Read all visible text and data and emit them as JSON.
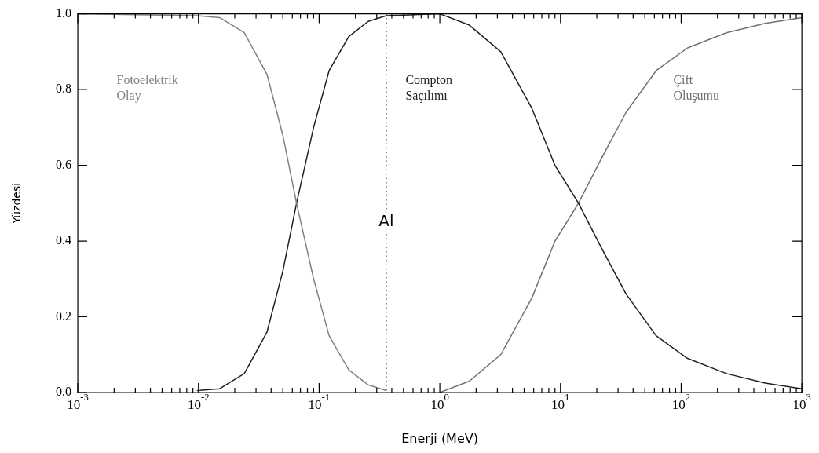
{
  "chart_data": {
    "type": "line",
    "xlabel": "Enerji (MeV)",
    "ylabel": "Yüzdesi",
    "log": "x",
    "grid": false,
    "legend": false,
    "marker": "none",
    "line_style": "solid",
    "xlim": [
      0.001,
      1000
    ],
    "ylim": [
      0,
      1
    ],
    "xticks": [
      {
        "value": 0.001,
        "label": "10$^{-3}$"
      },
      {
        "value": 0.002,
        "label": null
      },
      {
        "value": 0.003,
        "label": null
      },
      {
        "value": 0.004,
        "label": null
      },
      {
        "value": 0.005,
        "label": null
      },
      {
        "value": 0.006,
        "label": null
      },
      {
        "value": 0.007,
        "label": null
      },
      {
        "value": 0.008,
        "label": null
      },
      {
        "value": 0.009,
        "label": null
      },
      {
        "value": 0.01,
        "label": "10$^{-2}$"
      },
      {
        "value": 0.02,
        "label": null
      },
      {
        "value": 0.03,
        "label": null
      },
      {
        "value": 0.04,
        "label": null
      },
      {
        "value": 0.05,
        "label": null
      },
      {
        "value": 0.06,
        "label": null
      },
      {
        "value": 0.07,
        "label": null
      },
      {
        "value": 0.08,
        "label": null
      },
      {
        "value": 0.09,
        "label": null
      },
      {
        "value": 0.1,
        "label": "10$^{-1}$"
      },
      {
        "value": 0.2,
        "label": null
      },
      {
        "value": 0.3,
        "label": null
      },
      {
        "value": 0.4,
        "label": null
      },
      {
        "value": 0.5,
        "label": null
      },
      {
        "value": 0.6,
        "label": null
      },
      {
        "value": 0.7,
        "label": null
      },
      {
        "value": 0.8,
        "label": null
      },
      {
        "value": 0.9,
        "label": null
      },
      {
        "value": 1,
        "label": "10$^{0}$"
      },
      {
        "value": 2,
        "label": null
      },
      {
        "value": 3,
        "label": null
      },
      {
        "value": 4,
        "label": null
      },
      {
        "value": 5,
        "label": null
      },
      {
        "value": 6,
        "label": null
      },
      {
        "value": 7,
        "label": null
      },
      {
        "value": 8,
        "label": null
      },
      {
        "value": 9,
        "label": null
      },
      {
        "value": 10,
        "label": "10$^{1}$"
      },
      {
        "value": 20,
        "label": null
      },
      {
        "value": 30,
        "label": null
      },
      {
        "value": 40,
        "label": null
      },
      {
        "value": 50,
        "label": null
      },
      {
        "value": 60,
        "label": null
      },
      {
        "value": 70,
        "label": null
      },
      {
        "value": 80,
        "label": null
      },
      {
        "value": 90,
        "label": null
      },
      {
        "value": 100,
        "label": "10$^{2}$"
      },
      {
        "value": 200,
        "label": null
      },
      {
        "value": 300,
        "label": null
      },
      {
        "value": 400,
        "label": null
      },
      {
        "value": 500,
        "label": null
      },
      {
        "value": 600,
        "label": null
      },
      {
        "value": 700,
        "label": null
      },
      {
        "value": 800,
        "label": null
      },
      {
        "value": 900,
        "label": null
      },
      {
        "value": 1000,
        "label": "10$^{3}$"
      }
    ],
    "yticks": [
      {
        "value": 0,
        "label": "0.0"
      },
      {
        "value": 0.2,
        "label": "0.2"
      },
      {
        "value": 0.4,
        "label": "0.4"
      },
      {
        "value": 0.6,
        "label": "0.6"
      },
      {
        "value": 0.8,
        "label": "0.8"
      },
      {
        "value": 1,
        "label": "1.0"
      }
    ],
    "ref_lines": [
      {
        "axis": "x",
        "value": 0.36,
        "label": "Al",
        "line_style": "dotted",
        "color": "#000000"
      }
    ],
    "series": [
      {
        "name": "Fotoelektrik Olay",
        "color": "#808080",
        "x": [
          0.001,
          0.0097,
          0.015,
          0.024,
          0.037,
          0.05,
          0.065,
          0.09,
          0.121,
          0.176,
          0.255,
          0.36
        ],
        "values": [
          1,
          0.995,
          0.99,
          0.95,
          0.84,
          0.68,
          0.5,
          0.3,
          0.15,
          0.06,
          0.02,
          0.005
        ]
      },
      {
        "name": "Compton Saçılımı",
        "color": "#202020",
        "x": [
          0.0097,
          0.015,
          0.024,
          0.037,
          0.05,
          0.065,
          0.09,
          0.121,
          0.176,
          0.255,
          0.36,
          1,
          1.76,
          3.2,
          5.8,
          9,
          14.1,
          22,
          35,
          62,
          113,
          237,
          498,
          1000
        ],
        "values": [
          0.005,
          0.01,
          0.05,
          0.16,
          0.32,
          0.5,
          0.7,
          0.85,
          0.94,
          0.98,
          0.995,
          1,
          0.97,
          0.9,
          0.75,
          0.6,
          0.5,
          0.38,
          0.26,
          0.15,
          0.09,
          0.05,
          0.025,
          0.01
        ]
      },
      {
        "name": "Çift Oluşumu",
        "color": "#707070",
        "x": [
          1,
          1.76,
          3.2,
          5.8,
          9,
          14.1,
          22,
          35,
          62,
          113,
          237,
          498,
          1000
        ],
        "values": [
          0,
          0.03,
          0.1,
          0.25,
          0.4,
          0.5,
          0.62,
          0.74,
          0.85,
          0.91,
          0.95,
          0.975,
          0.99
        ]
      }
    ]
  }
}
